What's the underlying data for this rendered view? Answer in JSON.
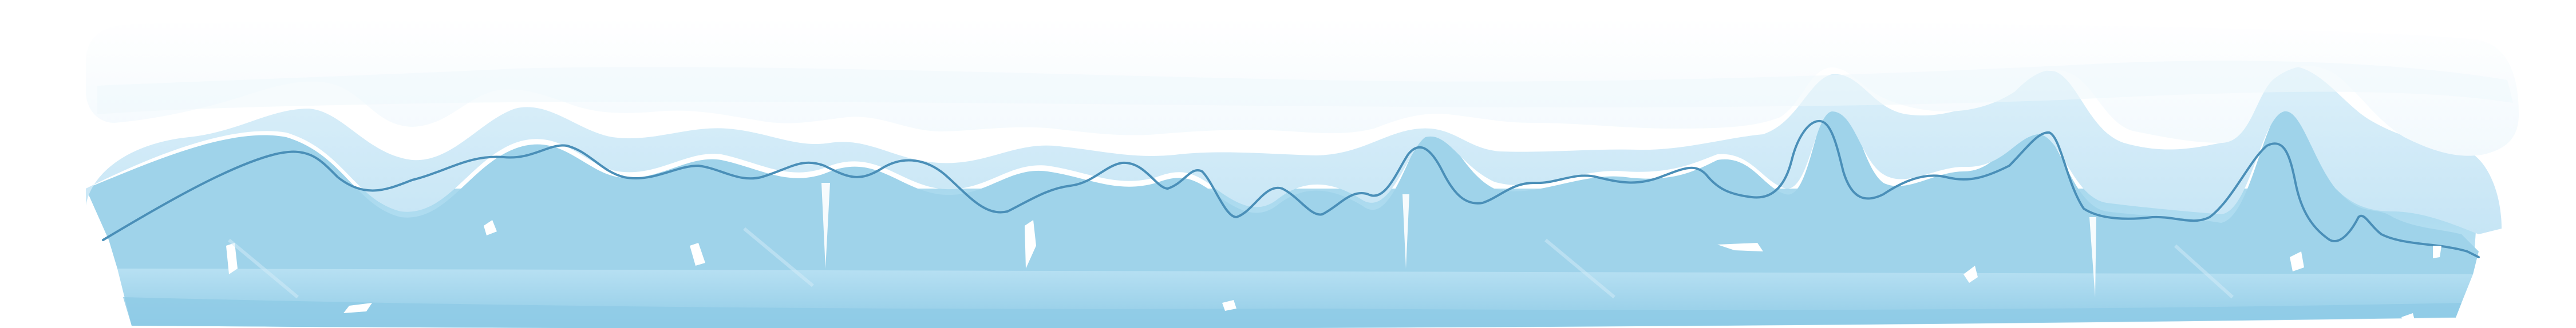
{
  "asset": {
    "kind": "snow-capped ice platform",
    "colors": {
      "background": "#ffffff",
      "snow_top": "#ffffff",
      "snow_shadow": "#e8f4fb",
      "snow_rim": "#cfe8f6",
      "ice_deep": "#8ecbe6",
      "ice_mid": "#a9d9ee",
      "ice_light": "#c4e6f5",
      "ice_bottom": "#7fc0de",
      "outline": "#4a8fb8",
      "shard": "#ffffff"
    },
    "features": [
      "snow-layer",
      "wavy-ice-ridge",
      "icicles",
      "ice-shards",
      "ice-block"
    ]
  }
}
